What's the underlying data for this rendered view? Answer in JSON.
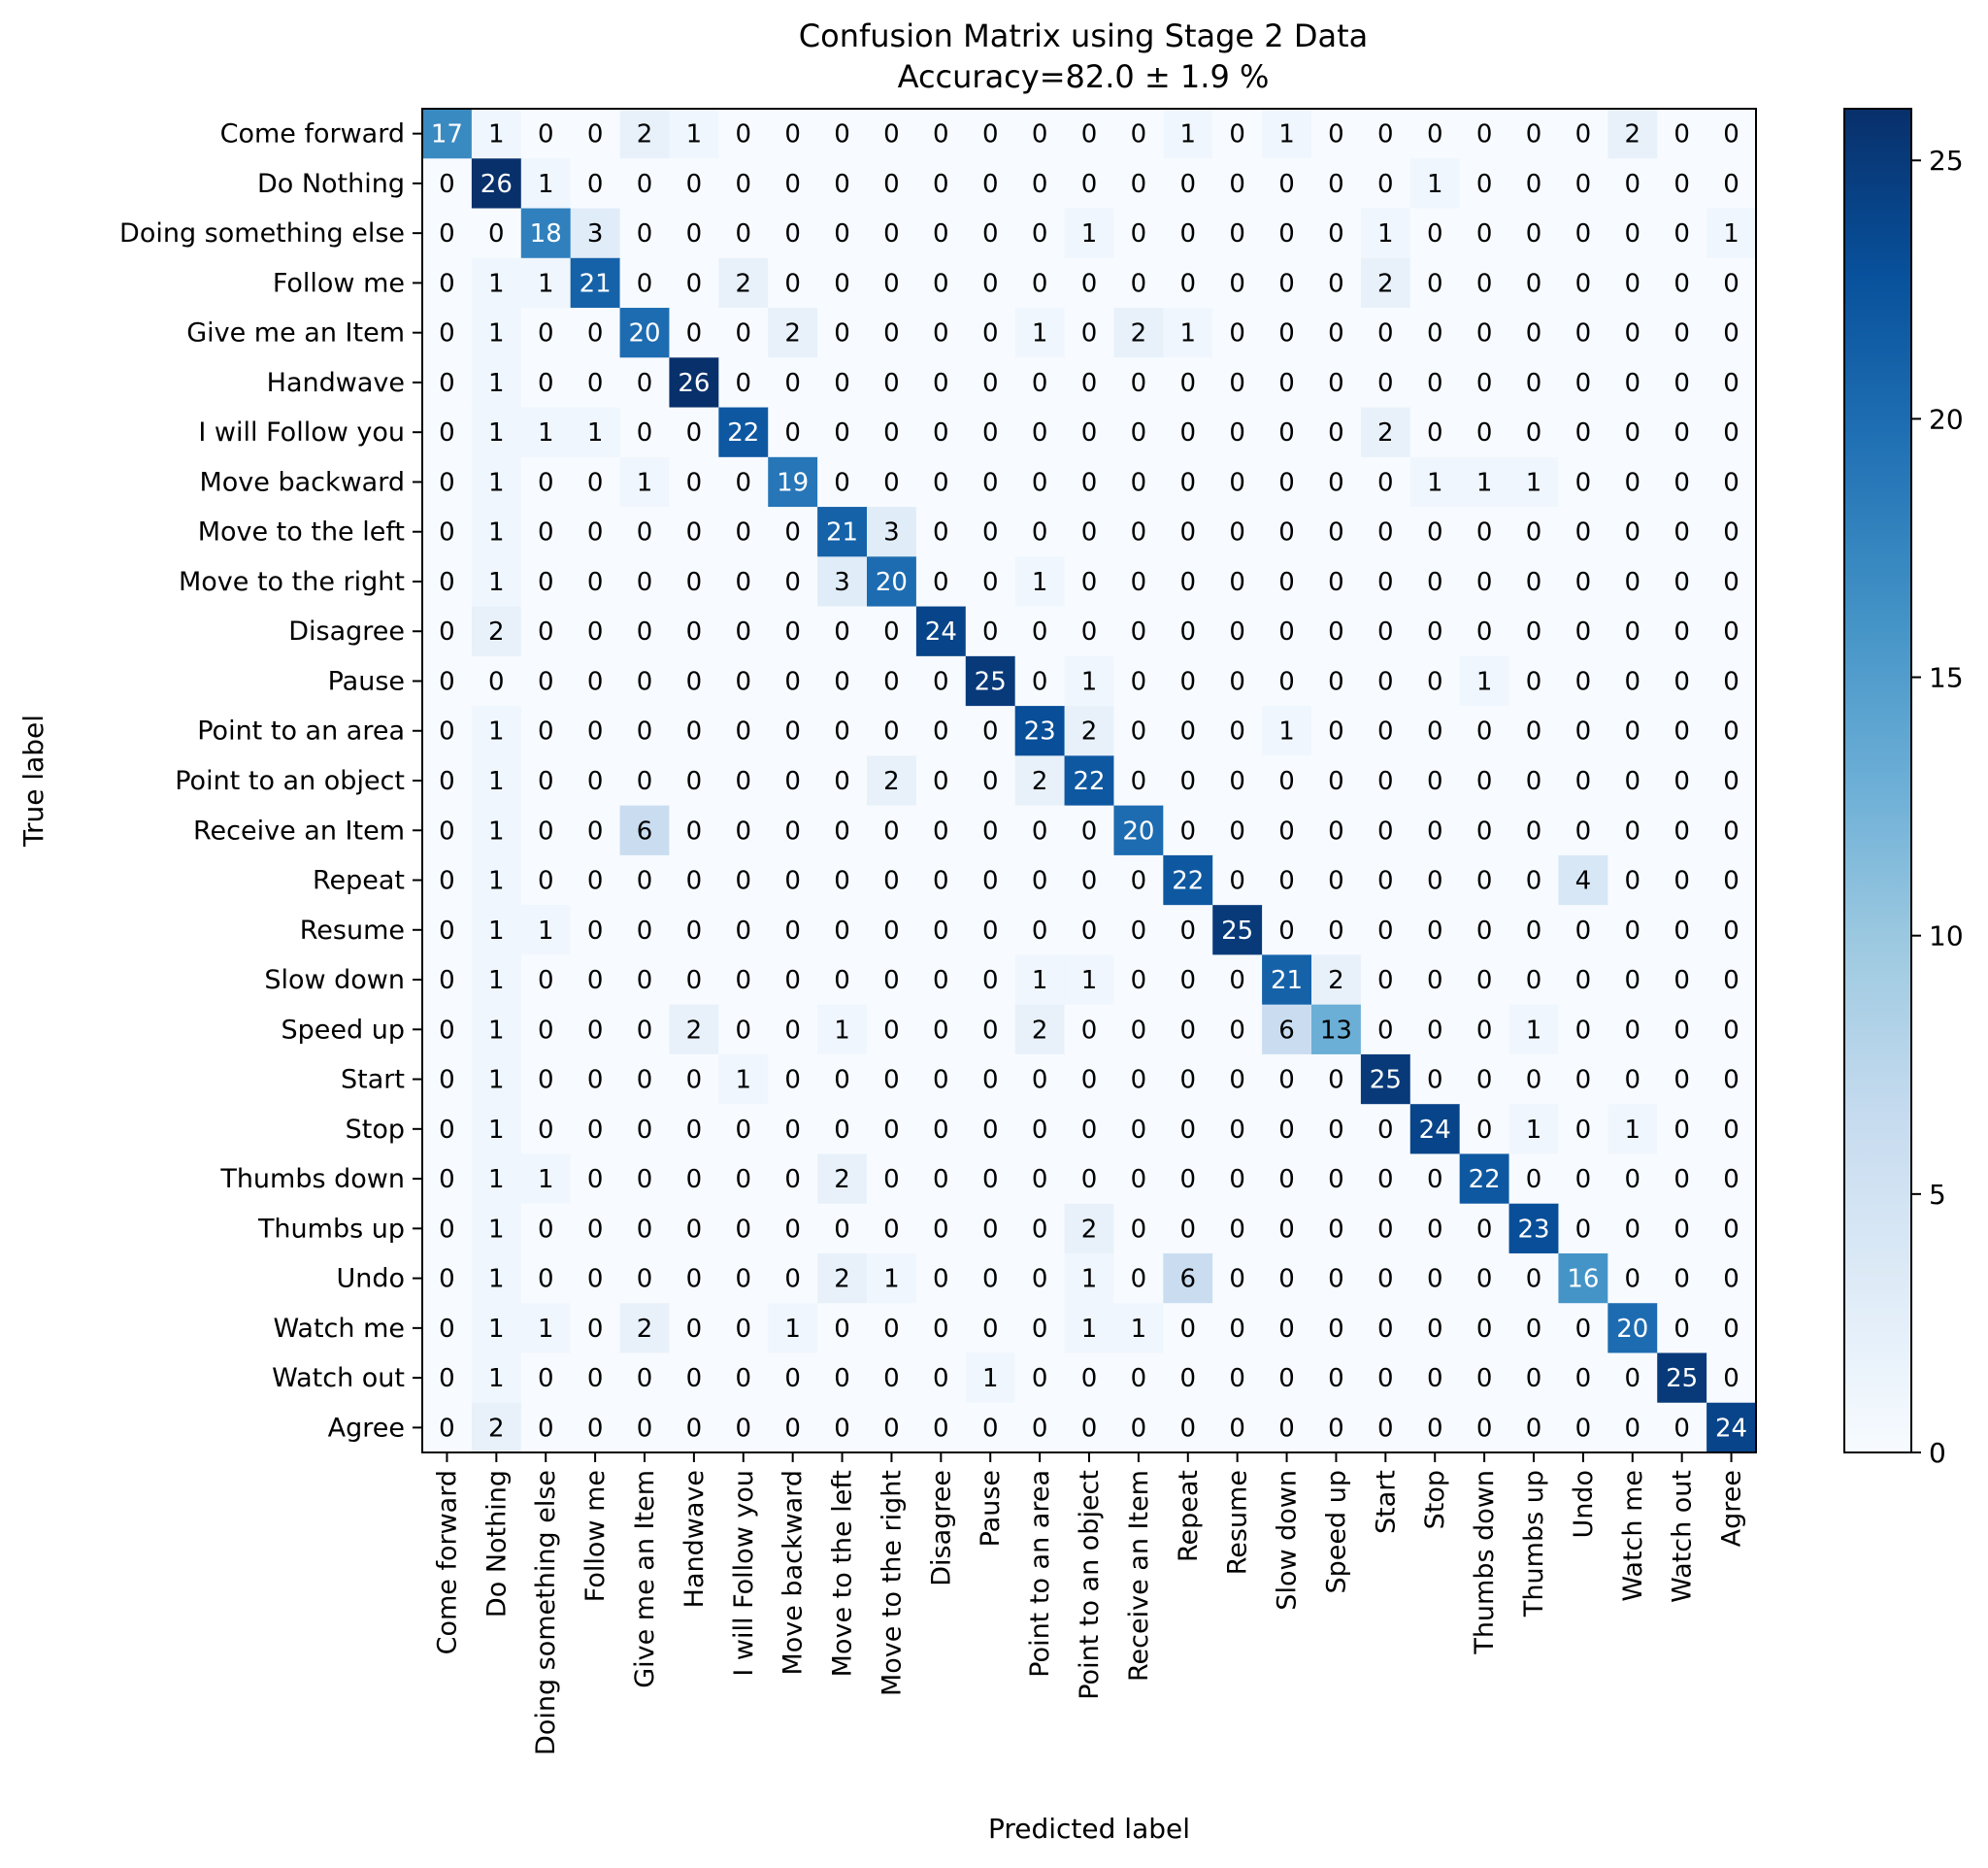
{
  "chart_data": {
    "type": "heatmap",
    "title": "Confusion Matrix using Stage 2 Data",
    "subtitle": "Accuracy=82.0 ± 1.9 %",
    "xlabel": "Predicted label",
    "ylabel": "True label",
    "labels": [
      "Come forward",
      "Do Nothing",
      "Doing something else",
      "Follow me",
      "Give me an Item",
      "Handwave",
      "I will Follow you",
      "Move backward",
      "Move to the left",
      "Move to the right",
      "Disagree",
      "Pause",
      "Point to an area",
      "Point to an object",
      "Receive an Item",
      "Repeat",
      "Resume",
      "Slow down",
      "Speed up",
      "Start",
      "Stop",
      "Thumbs down",
      "Thumbs up",
      "Undo",
      "Watch me",
      "Watch out",
      "Agree"
    ],
    "matrix": [
      [
        17,
        1,
        0,
        0,
        2,
        1,
        0,
        0,
        0,
        0,
        0,
        0,
        0,
        0,
        0,
        1,
        0,
        1,
        0,
        0,
        0,
        0,
        0,
        0,
        2,
        0,
        0
      ],
      [
        0,
        26,
        1,
        0,
        0,
        0,
        0,
        0,
        0,
        0,
        0,
        0,
        0,
        0,
        0,
        0,
        0,
        0,
        0,
        0,
        1,
        0,
        0,
        0,
        0,
        0,
        0
      ],
      [
        0,
        0,
        18,
        3,
        0,
        0,
        0,
        0,
        0,
        0,
        0,
        0,
        0,
        1,
        0,
        0,
        0,
        0,
        0,
        1,
        0,
        0,
        0,
        0,
        0,
        0,
        1
      ],
      [
        0,
        1,
        1,
        21,
        0,
        0,
        2,
        0,
        0,
        0,
        0,
        0,
        0,
        0,
        0,
        0,
        0,
        0,
        0,
        2,
        0,
        0,
        0,
        0,
        0,
        0,
        0
      ],
      [
        0,
        1,
        0,
        0,
        20,
        0,
        0,
        2,
        0,
        0,
        0,
        0,
        1,
        0,
        2,
        1,
        0,
        0,
        0,
        0,
        0,
        0,
        0,
        0,
        0,
        0,
        0
      ],
      [
        0,
        1,
        0,
        0,
        0,
        26,
        0,
        0,
        0,
        0,
        0,
        0,
        0,
        0,
        0,
        0,
        0,
        0,
        0,
        0,
        0,
        0,
        0,
        0,
        0,
        0,
        0
      ],
      [
        0,
        1,
        1,
        1,
        0,
        0,
        22,
        0,
        0,
        0,
        0,
        0,
        0,
        0,
        0,
        0,
        0,
        0,
        0,
        2,
        0,
        0,
        0,
        0,
        0,
        0,
        0
      ],
      [
        0,
        1,
        0,
        0,
        1,
        0,
        0,
        19,
        0,
        0,
        0,
        0,
        0,
        0,
        0,
        0,
        0,
        0,
        0,
        0,
        1,
        1,
        1,
        0,
        0,
        0,
        0
      ],
      [
        0,
        1,
        0,
        0,
        0,
        0,
        0,
        0,
        21,
        3,
        0,
        0,
        0,
        0,
        0,
        0,
        0,
        0,
        0,
        0,
        0,
        0,
        0,
        0,
        0,
        0,
        0
      ],
      [
        0,
        1,
        0,
        0,
        0,
        0,
        0,
        0,
        3,
        20,
        0,
        0,
        1,
        0,
        0,
        0,
        0,
        0,
        0,
        0,
        0,
        0,
        0,
        0,
        0,
        0,
        0
      ],
      [
        0,
        2,
        0,
        0,
        0,
        0,
        0,
        0,
        0,
        0,
        24,
        0,
        0,
        0,
        0,
        0,
        0,
        0,
        0,
        0,
        0,
        0,
        0,
        0,
        0,
        0,
        0
      ],
      [
        0,
        0,
        0,
        0,
        0,
        0,
        0,
        0,
        0,
        0,
        0,
        25,
        0,
        1,
        0,
        0,
        0,
        0,
        0,
        0,
        0,
        1,
        0,
        0,
        0,
        0,
        0
      ],
      [
        0,
        1,
        0,
        0,
        0,
        0,
        0,
        0,
        0,
        0,
        0,
        0,
        23,
        2,
        0,
        0,
        0,
        1,
        0,
        0,
        0,
        0,
        0,
        0,
        0,
        0,
        0
      ],
      [
        0,
        1,
        0,
        0,
        0,
        0,
        0,
        0,
        0,
        2,
        0,
        0,
        2,
        22,
        0,
        0,
        0,
        0,
        0,
        0,
        0,
        0,
        0,
        0,
        0,
        0,
        0
      ],
      [
        0,
        1,
        0,
        0,
        6,
        0,
        0,
        0,
        0,
        0,
        0,
        0,
        0,
        0,
        20,
        0,
        0,
        0,
        0,
        0,
        0,
        0,
        0,
        0,
        0,
        0,
        0
      ],
      [
        0,
        1,
        0,
        0,
        0,
        0,
        0,
        0,
        0,
        0,
        0,
        0,
        0,
        0,
        0,
        22,
        0,
        0,
        0,
        0,
        0,
        0,
        0,
        4,
        0,
        0,
        0
      ],
      [
        0,
        1,
        1,
        0,
        0,
        0,
        0,
        0,
        0,
        0,
        0,
        0,
        0,
        0,
        0,
        0,
        25,
        0,
        0,
        0,
        0,
        0,
        0,
        0,
        0,
        0,
        0
      ],
      [
        0,
        1,
        0,
        0,
        0,
        0,
        0,
        0,
        0,
        0,
        0,
        0,
        1,
        1,
        0,
        0,
        0,
        21,
        2,
        0,
        0,
        0,
        0,
        0,
        0,
        0,
        0
      ],
      [
        0,
        1,
        0,
        0,
        0,
        2,
        0,
        0,
        1,
        0,
        0,
        0,
        2,
        0,
        0,
        0,
        0,
        6,
        13,
        0,
        0,
        0,
        1,
        0,
        0,
        0,
        0
      ],
      [
        0,
        1,
        0,
        0,
        0,
        0,
        1,
        0,
        0,
        0,
        0,
        0,
        0,
        0,
        0,
        0,
        0,
        0,
        0,
        25,
        0,
        0,
        0,
        0,
        0,
        0,
        0
      ],
      [
        0,
        1,
        0,
        0,
        0,
        0,
        0,
        0,
        0,
        0,
        0,
        0,
        0,
        0,
        0,
        0,
        0,
        0,
        0,
        0,
        24,
        0,
        1,
        0,
        1,
        0,
        0
      ],
      [
        0,
        1,
        1,
        0,
        0,
        0,
        0,
        0,
        2,
        0,
        0,
        0,
        0,
        0,
        0,
        0,
        0,
        0,
        0,
        0,
        0,
        22,
        0,
        0,
        0,
        0,
        0
      ],
      [
        0,
        1,
        0,
        0,
        0,
        0,
        0,
        0,
        0,
        0,
        0,
        0,
        0,
        2,
        0,
        0,
        0,
        0,
        0,
        0,
        0,
        0,
        23,
        0,
        0,
        0,
        0
      ],
      [
        0,
        1,
        0,
        0,
        0,
        0,
        0,
        0,
        2,
        1,
        0,
        0,
        0,
        1,
        0,
        6,
        0,
        0,
        0,
        0,
        0,
        0,
        0,
        16,
        0,
        0,
        0
      ],
      [
        0,
        1,
        1,
        0,
        2,
        0,
        0,
        1,
        0,
        0,
        0,
        0,
        0,
        1,
        1,
        0,
        0,
        0,
        0,
        0,
        0,
        0,
        0,
        0,
        20,
        0,
        0
      ],
      [
        0,
        1,
        0,
        0,
        0,
        0,
        0,
        0,
        0,
        0,
        0,
        1,
        0,
        0,
        0,
        0,
        0,
        0,
        0,
        0,
        0,
        0,
        0,
        0,
        0,
        25,
        0
      ],
      [
        0,
        2,
        0,
        0,
        0,
        0,
        0,
        0,
        0,
        0,
        0,
        0,
        0,
        0,
        0,
        0,
        0,
        0,
        0,
        0,
        0,
        0,
        0,
        0,
        0,
        0,
        24
      ]
    ],
    "colorbar": {
      "range": [
        0,
        26
      ],
      "ticks": [
        0,
        5,
        10,
        15,
        20,
        25
      ]
    },
    "colormap": "Blues",
    "colors": {
      "low": "#f7fbff",
      "high": "#08306b",
      "text_dark": "#000000",
      "text_light": "#ffffff"
    },
    "grid": false
  }
}
